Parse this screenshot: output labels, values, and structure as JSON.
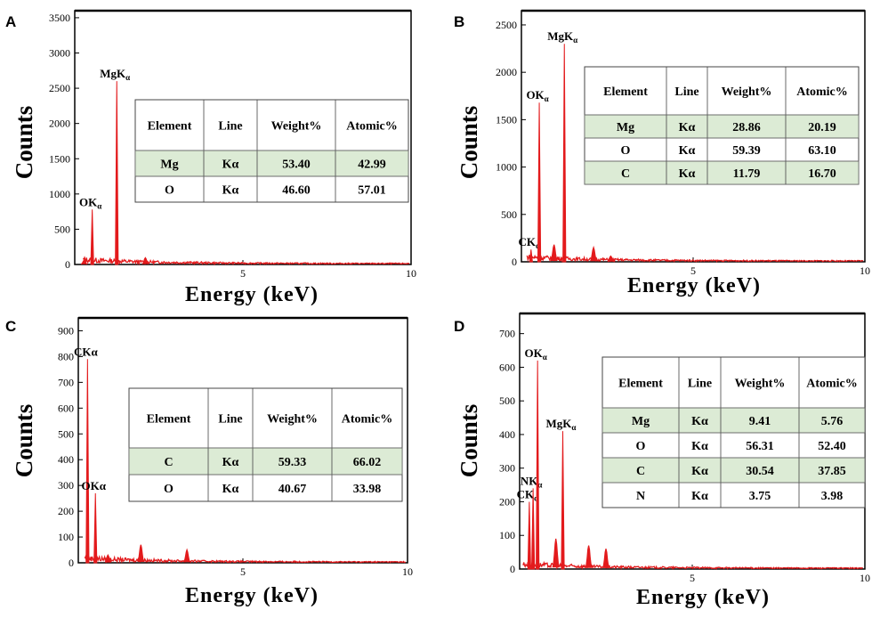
{
  "chart_data": [
    {
      "panel": "A",
      "type": "line",
      "ylabel": "Counts",
      "xlabel": "Energy (keV)",
      "xlim": [
        0,
        10
      ],
      "ylim": [
        0,
        3600
      ],
      "yticks": [
        0,
        500,
        1000,
        1500,
        2000,
        2500,
        3000,
        3500
      ],
      "xticks": [
        5,
        10
      ],
      "peaks": [
        {
          "label": "OK",
          "sub": "α",
          "energy": 0.52,
          "counts": 780
        },
        {
          "label": "MgK",
          "sub": "α",
          "energy": 1.25,
          "counts": 2600
        }
      ],
      "minor_peaks": [
        {
          "energy": 2.1,
          "counts": 95
        },
        {
          "energy": 0.28,
          "counts": 60
        }
      ],
      "table": {
        "headers": [
          "Element",
          "Line",
          "Weight%",
          "Atomic%"
        ],
        "rows": [
          [
            "Mg",
            "Kα",
            "53.40",
            "42.99"
          ],
          [
            "O",
            "Kα",
            "46.60",
            "57.01"
          ]
        ]
      }
    },
    {
      "panel": "B",
      "type": "line",
      "ylabel": "Counts",
      "xlabel": "Energy (keV)",
      "xlim": [
        0,
        10
      ],
      "ylim": [
        0,
        2650
      ],
      "yticks": [
        0,
        500,
        1000,
        1500,
        2000,
        2500
      ],
      "xticks": [
        5,
        10
      ],
      "peaks": [
        {
          "label": "CK",
          "sub": "α",
          "energy": 0.28,
          "counts": 130
        },
        {
          "label": "OK",
          "sub": "α",
          "energy": 0.52,
          "counts": 1680
        },
        {
          "label": "MgK",
          "sub": "α",
          "energy": 1.25,
          "counts": 2300
        }
      ],
      "minor_peaks": [
        {
          "energy": 0.95,
          "counts": 180
        },
        {
          "energy": 2.1,
          "counts": 150
        },
        {
          "energy": 2.6,
          "counts": 60
        }
      ],
      "table": {
        "headers": [
          "Element",
          "Line",
          "Weight%",
          "Atomic%"
        ],
        "rows": [
          [
            "Mg",
            "Kα",
            "28.86",
            "20.19"
          ],
          [
            "O",
            "Kα",
            "59.39",
            "63.10"
          ],
          [
            "C",
            "Kα",
            "11.79",
            "16.70"
          ]
        ]
      }
    },
    {
      "panel": "C",
      "type": "line",
      "ylabel": "Counts",
      "xlabel": "Energy (keV)",
      "xlim": [
        0,
        10
      ],
      "ylim": [
        0,
        950
      ],
      "yticks": [
        0,
        100,
        200,
        300,
        400,
        500,
        600,
        700,
        800,
        900
      ],
      "xticks": [
        5,
        10
      ],
      "peaks": [
        {
          "label": "CKα",
          "sub": "",
          "energy": 0.28,
          "counts": 790
        },
        {
          "label": "OKα",
          "sub": "",
          "energy": 0.52,
          "counts": 270
        }
      ],
      "minor_peaks": [
        {
          "energy": 1.9,
          "counts": 70
        },
        {
          "energy": 3.3,
          "counts": 50
        },
        {
          "energy": 0.9,
          "counts": 30
        }
      ],
      "table": {
        "headers": [
          "Element",
          "Line",
          "Weight%",
          "Atomic%"
        ],
        "rows": [
          [
            "C",
            "Kα",
            "59.33",
            "66.02"
          ],
          [
            "O",
            "Kα",
            "40.67",
            "33.98"
          ]
        ]
      }
    },
    {
      "panel": "D",
      "type": "line",
      "ylabel": "Counts",
      "xlabel": "Energy (keV)",
      "xlim": [
        0,
        10
      ],
      "ylim": [
        0,
        760
      ],
      "yticks": [
        0,
        100,
        200,
        300,
        400,
        500,
        600,
        700
      ],
      "xticks": [
        5,
        10
      ],
      "peaks": [
        {
          "label": "CK",
          "sub": "α",
          "energy": 0.28,
          "counts": 200
        },
        {
          "label": "NK",
          "sub": "α",
          "energy": 0.39,
          "counts": 240
        },
        {
          "label": "OK",
          "sub": "α",
          "energy": 0.52,
          "counts": 620
        },
        {
          "label": "MgK",
          "sub": "α",
          "energy": 1.25,
          "counts": 410
        }
      ],
      "minor_peaks": [
        {
          "energy": 1.05,
          "counts": 90
        },
        {
          "energy": 2.0,
          "counts": 70
        },
        {
          "energy": 2.5,
          "counts": 60
        }
      ],
      "table": {
        "headers": [
          "Element",
          "Line",
          "Weight%",
          "Atomic%"
        ],
        "rows": [
          [
            "Mg",
            "Kα",
            "9.41",
            "5.76"
          ],
          [
            "O",
            "Kα",
            "56.31",
            "52.40"
          ],
          [
            "C",
            "Kα",
            "30.54",
            "37.85"
          ],
          [
            "N",
            "Kα",
            "3.75",
            "3.98"
          ]
        ]
      }
    }
  ],
  "colors": {
    "spectrum": "#e31a1c",
    "highlight_row": "#dcebd5",
    "frame": "#000000"
  }
}
